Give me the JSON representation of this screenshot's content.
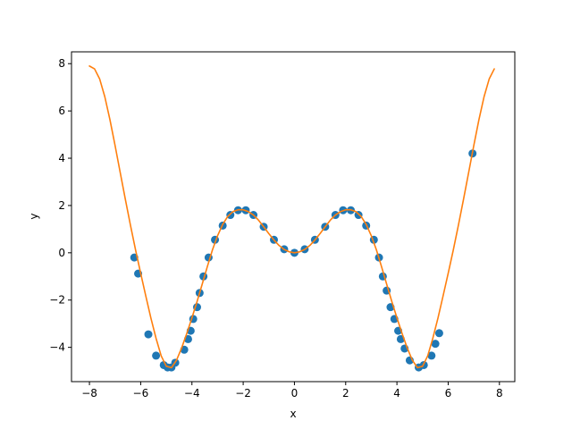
{
  "chart_data": {
    "type": "scatter",
    "title": "",
    "xlabel": "x",
    "ylabel": "y",
    "xlim": [
      -8.7,
      8.6
    ],
    "ylim": [
      -5.45,
      8.5
    ],
    "xticks": [
      -8,
      -6,
      -4,
      -2,
      0,
      2,
      4,
      6,
      8
    ],
    "yticks": [
      -4,
      -2,
      0,
      2,
      4,
      6,
      8
    ],
    "grid": false,
    "legend": null,
    "series": [
      {
        "kind": "scatter",
        "color": "#1f77b4",
        "points": [
          [
            -6.25,
            -0.2
          ],
          [
            -6.1,
            -0.88
          ],
          [
            -5.7,
            -3.45
          ],
          [
            -5.4,
            -4.35
          ],
          [
            -5.1,
            -4.75
          ],
          [
            -4.95,
            -4.85
          ],
          [
            -4.8,
            -4.85
          ],
          [
            -4.65,
            -4.65
          ],
          [
            -4.3,
            -4.1
          ],
          [
            -4.15,
            -3.65
          ],
          [
            -4.05,
            -3.3
          ],
          [
            -3.95,
            -2.8
          ],
          [
            -3.8,
            -2.3
          ],
          [
            -3.7,
            -1.7
          ],
          [
            -3.55,
            -1.0
          ],
          [
            -3.35,
            -0.2
          ],
          [
            -3.1,
            0.55
          ],
          [
            -2.8,
            1.15
          ],
          [
            -2.5,
            1.6
          ],
          [
            -2.2,
            1.8
          ],
          [
            -1.9,
            1.8
          ],
          [
            -1.6,
            1.6
          ],
          [
            -1.2,
            1.1
          ],
          [
            -0.8,
            0.55
          ],
          [
            -0.4,
            0.15
          ],
          [
            0.0,
            0.0
          ],
          [
            0.4,
            0.15
          ],
          [
            0.8,
            0.55
          ],
          [
            1.2,
            1.1
          ],
          [
            1.6,
            1.6
          ],
          [
            1.9,
            1.8
          ],
          [
            2.2,
            1.8
          ],
          [
            2.5,
            1.6
          ],
          [
            2.8,
            1.15
          ],
          [
            3.1,
            0.55
          ],
          [
            3.3,
            -0.2
          ],
          [
            3.45,
            -1.0
          ],
          [
            3.6,
            -1.6
          ],
          [
            3.75,
            -2.3
          ],
          [
            3.9,
            -2.8
          ],
          [
            4.05,
            -3.3
          ],
          [
            4.15,
            -3.65
          ],
          [
            4.3,
            -4.05
          ],
          [
            4.5,
            -4.55
          ],
          [
            4.85,
            -4.85
          ],
          [
            5.05,
            -4.75
          ],
          [
            5.35,
            -4.35
          ],
          [
            5.5,
            -3.85
          ],
          [
            5.65,
            -3.4
          ],
          [
            6.95,
            4.2
          ]
        ]
      },
      {
        "kind": "line",
        "color": "#ff7f0e",
        "x": [
          -8.0,
          -7.8,
          -7.6,
          -7.4,
          -7.2,
          -7.0,
          -6.8,
          -6.6,
          -6.4,
          -6.2,
          -6.0,
          -5.8,
          -5.6,
          -5.4,
          -5.2,
          -5.0,
          -4.8,
          -4.6,
          -4.4,
          -4.2,
          -4.0,
          -3.8,
          -3.6,
          -3.4,
          -3.2,
          -3.0,
          -2.8,
          -2.6,
          -2.4,
          -2.2,
          -2.0,
          -1.8,
          -1.6,
          -1.4,
          -1.2,
          -1.0,
          -0.8,
          -0.6,
          -0.4,
          -0.2,
          0.0,
          0.2,
          0.4,
          0.6,
          0.8,
          1.0,
          1.2,
          1.4,
          1.6,
          1.8,
          2.0,
          2.2,
          2.4,
          2.6,
          2.8,
          3.0,
          3.2,
          3.4,
          3.6,
          3.8,
          4.0,
          4.2,
          4.4,
          4.6,
          4.8,
          5.0,
          5.2,
          5.4,
          5.6,
          5.8,
          6.0,
          6.2,
          6.4,
          6.6,
          6.8,
          7.0,
          7.2,
          7.4,
          7.6,
          7.8
        ],
        "y": [
          7.9,
          7.78,
          7.35,
          6.6,
          5.63,
          4.54,
          3.4,
          2.27,
          1.17,
          0.12,
          -0.87,
          -1.83,
          -2.77,
          -3.62,
          -4.36,
          -4.8,
          -4.86,
          -4.54,
          -4.02,
          -3.41,
          -2.75,
          -2.06,
          -1.33,
          -0.59,
          0.12,
          0.72,
          1.2,
          1.54,
          1.74,
          1.82,
          1.82,
          1.74,
          1.6,
          1.38,
          1.1,
          0.81,
          0.54,
          0.31,
          0.14,
          0.04,
          0.0,
          0.04,
          0.14,
          0.31,
          0.54,
          0.81,
          1.1,
          1.38,
          1.6,
          1.74,
          1.82,
          1.82,
          1.74,
          1.54,
          1.2,
          0.72,
          0.12,
          -0.59,
          -1.33,
          -2.06,
          -2.75,
          -3.41,
          -4.02,
          -4.54,
          -4.86,
          -4.8,
          -4.36,
          -3.62,
          -2.77,
          -1.83,
          -0.87,
          0.12,
          1.17,
          2.27,
          3.4,
          4.54,
          5.63,
          6.6,
          7.35,
          7.78
        ]
      }
    ]
  }
}
